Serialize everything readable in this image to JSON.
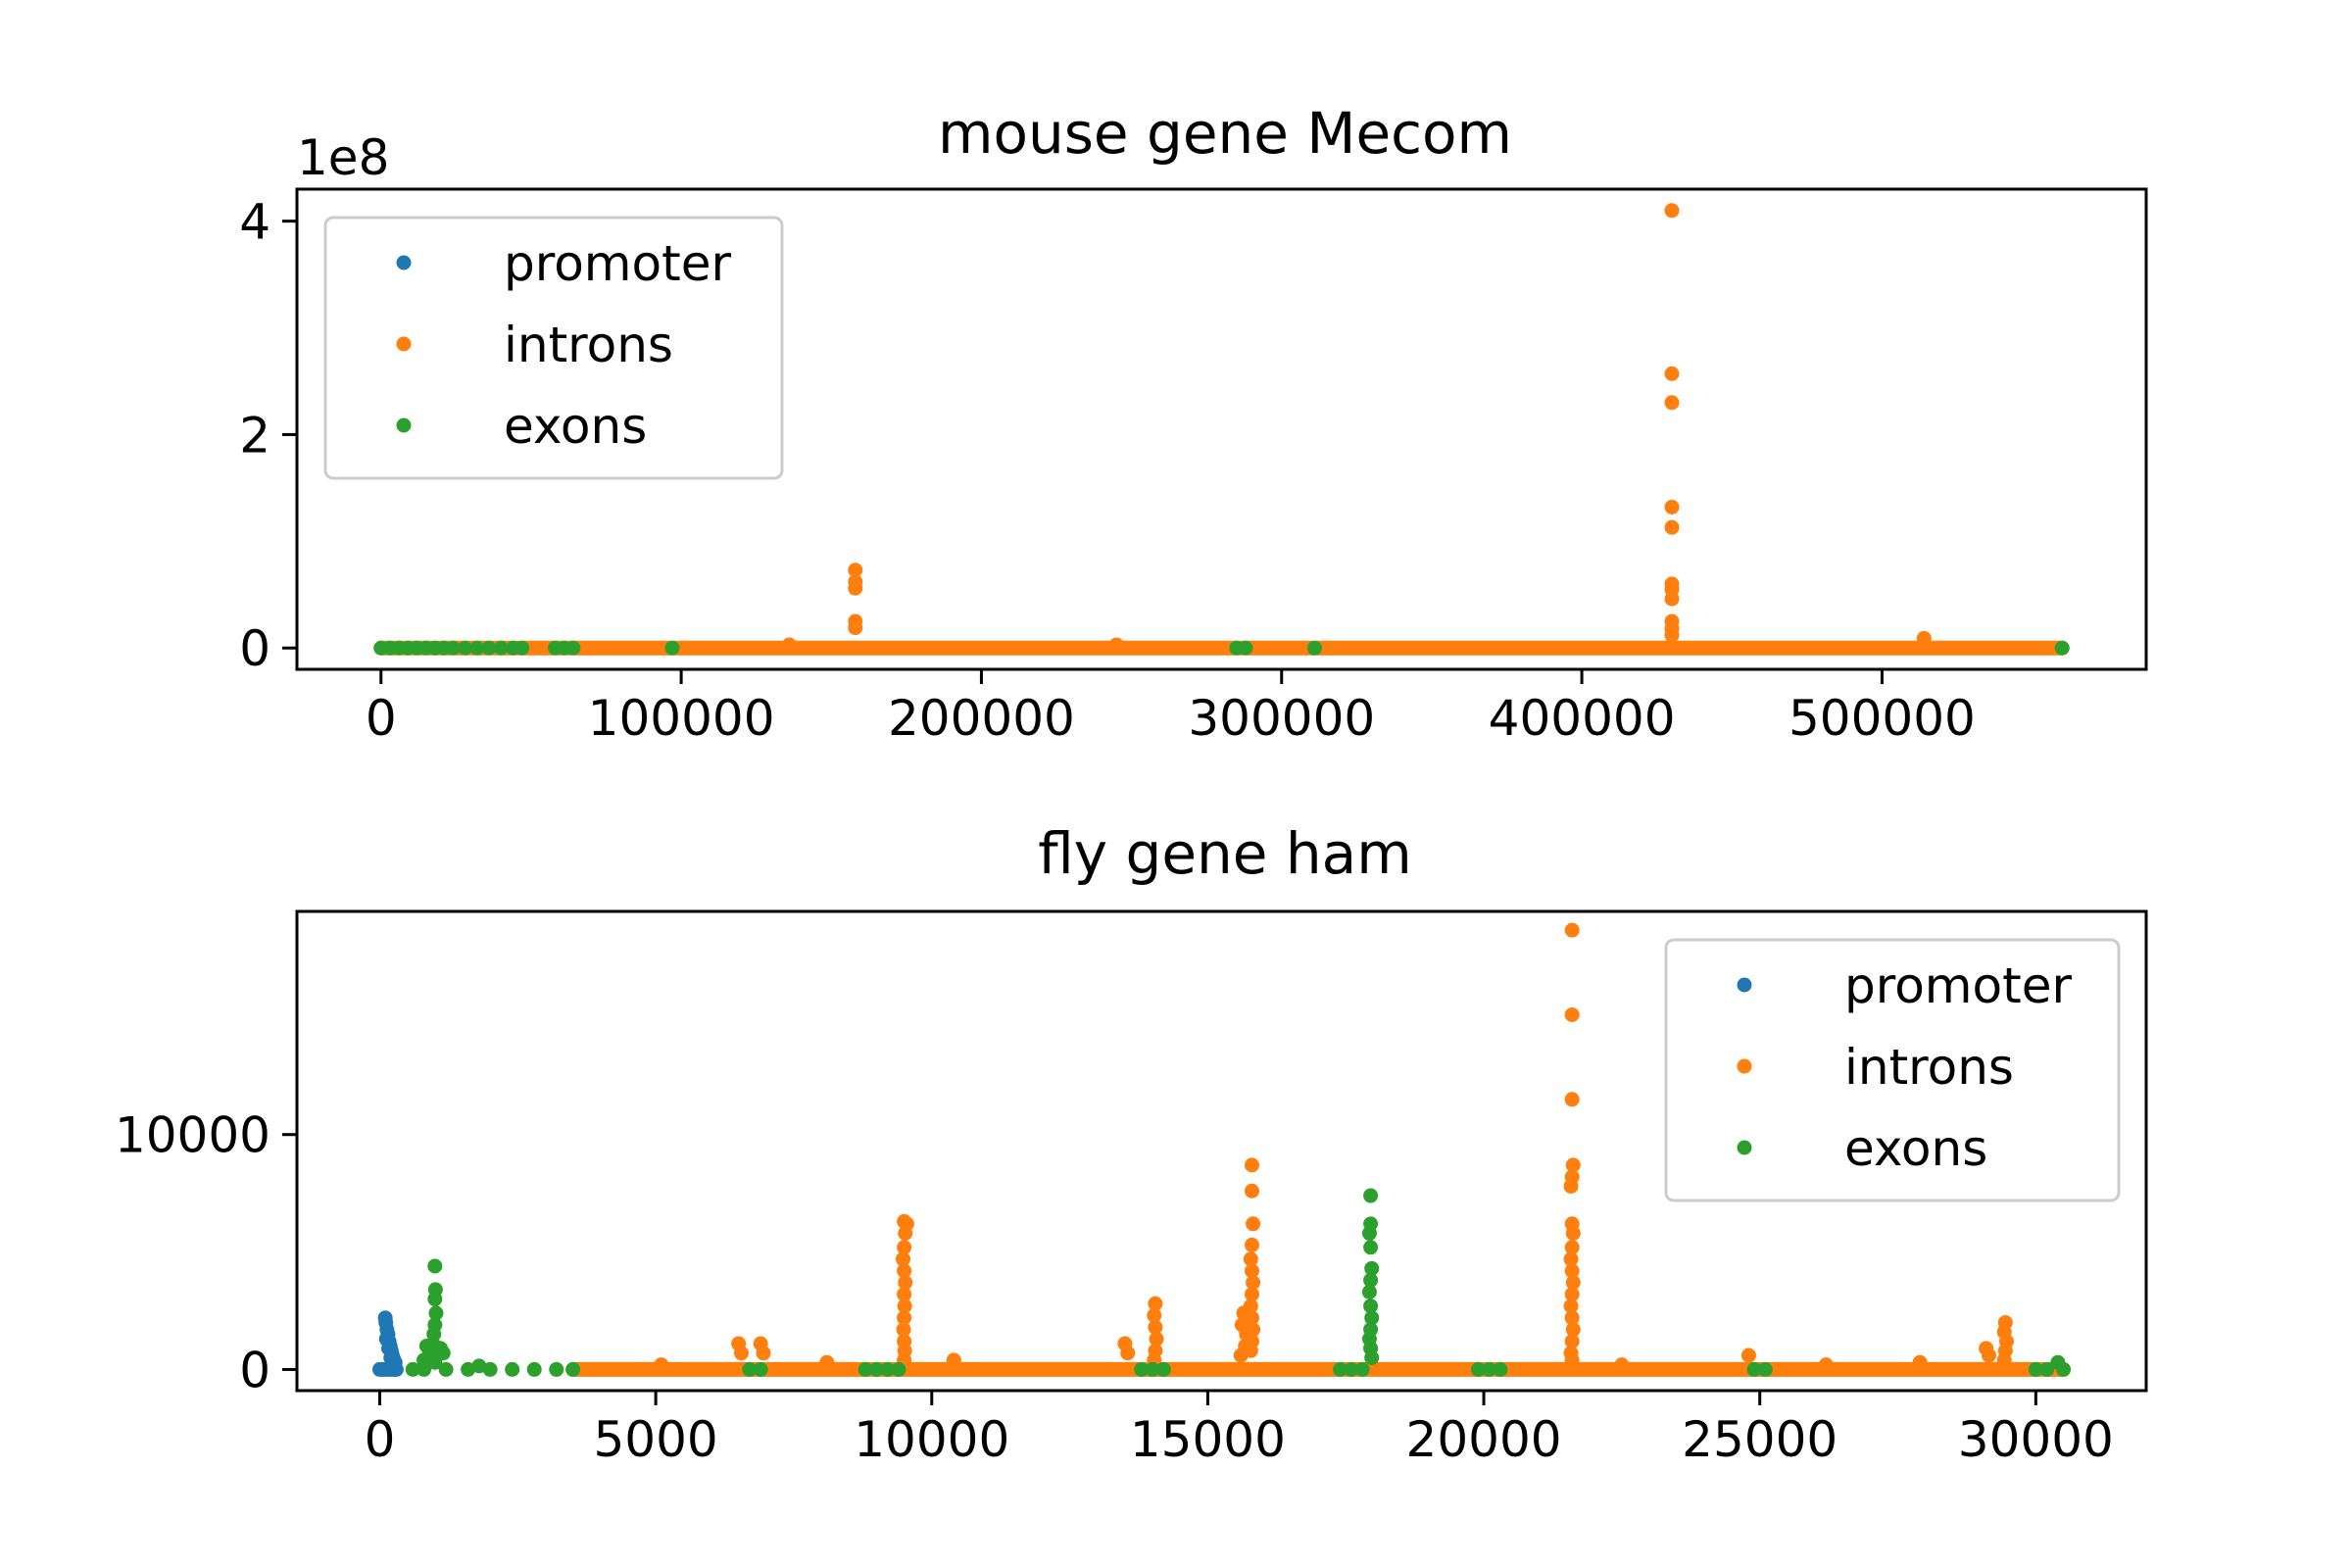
{
  "figure": {
    "legend_labels": [
      "promoter",
      "introns",
      "exons"
    ],
    "colors": {
      "promoter": "#1f77b4",
      "introns": "#ff7f0e",
      "exons": "#2ca02c"
    }
  },
  "chart_data": [
    {
      "type": "scatter",
      "title": "mouse gene Mecom",
      "xlabel": "",
      "ylabel": "",
      "y_offset_label": "1e8",
      "xlim": [
        -28000,
        588000
      ],
      "ylim": [
        -0.2,
        4.3
      ],
      "xticks": [
        0,
        100000,
        200000,
        300000,
        400000,
        500000
      ],
      "xtick_labels": [
        "0",
        "100000",
        "200000",
        "300000",
        "400000",
        "500000"
      ],
      "yticks": [
        0,
        2,
        4
      ],
      "ytick_labels": [
        "0",
        "2",
        "4"
      ],
      "grid": false,
      "legend": "upper left",
      "series": [
        {
          "name": "promoter",
          "color": "#1f77b4",
          "points": []
        },
        {
          "name": "introns",
          "color": "#ff7f0e",
          "baseline": [
            0,
            560000
          ],
          "points": [
            [
              158000,
              0.73
            ],
            [
              158000,
              0.62
            ],
            [
              158000,
              0.56
            ],
            [
              158000,
              0.25
            ],
            [
              158000,
              0.19
            ],
            [
              430000,
              4.1
            ],
            [
              430000,
              2.57
            ],
            [
              430000,
              2.3
            ],
            [
              430000,
              1.32
            ],
            [
              430000,
              1.13
            ],
            [
              430000,
              0.6
            ],
            [
              430000,
              0.55
            ],
            [
              430000,
              0.46
            ],
            [
              430000,
              0.25
            ],
            [
              430000,
              0.18
            ],
            [
              430000,
              0.12
            ],
            [
              514000,
              0.09
            ],
            [
              245000,
              0.03
            ],
            [
              136000,
              0.03
            ]
          ]
        },
        {
          "name": "exons",
          "color": "#2ca02c",
          "points": [
            [
              0,
              0
            ],
            [
              3000,
              0
            ],
            [
              6000,
              0
            ],
            [
              9000,
              0
            ],
            [
              12000,
              0
            ],
            [
              15000,
              0
            ],
            [
              18000,
              0
            ],
            [
              21000,
              0
            ],
            [
              24000,
              0
            ],
            [
              28000,
              0
            ],
            [
              32000,
              0
            ],
            [
              36000,
              0
            ],
            [
              40000,
              0
            ],
            [
              44000,
              0
            ],
            [
              47000,
              0
            ],
            [
              58000,
              0
            ],
            [
              61000,
              0
            ],
            [
              64000,
              0
            ],
            [
              97000,
              0
            ],
            [
              285000,
              0
            ],
            [
              288000,
              0
            ],
            [
              311000,
              0
            ],
            [
              560000,
              0
            ]
          ]
        }
      ]
    },
    {
      "type": "scatter",
      "title": "fly gene ham",
      "xlabel": "",
      "ylabel": "",
      "xlim": [
        -1500,
        32000
      ],
      "ylim": [
        -900,
        19500
      ],
      "xticks": [
        0,
        5000,
        10000,
        15000,
        20000,
        25000,
        30000
      ],
      "xtick_labels": [
        "0",
        "5000",
        "10000",
        "15000",
        "20000",
        "25000",
        "30000"
      ],
      "yticks": [
        0,
        10000
      ],
      "ytick_labels": [
        "0",
        "10000"
      ],
      "grid": false,
      "legend": "upper right",
      "series": [
        {
          "name": "promoter",
          "color": "#1f77b4",
          "baseline": [
            0,
            300
          ],
          "points": [
            [
              100,
              2200
            ],
            [
              110,
              2000
            ],
            [
              130,
              1700
            ],
            [
              150,
              1500
            ],
            [
              170,
              1200
            ],
            [
              190,
              1000
            ],
            [
              210,
              800
            ],
            [
              230,
              600
            ],
            [
              250,
              450
            ],
            [
              280,
              300
            ],
            [
              120,
              1300
            ],
            [
              160,
              900
            ],
            [
              200,
              500
            ]
          ]
        },
        {
          "name": "introns",
          "color": "#ff7f0e",
          "baseline": [
            3500,
            30500
          ],
          "points": [
            [
              9500,
              6300
            ],
            [
              9550,
              6200
            ],
            [
              9520,
              5800
            ],
            [
              9500,
              5200
            ],
            [
              9480,
              4700
            ],
            [
              9500,
              4200
            ],
            [
              9520,
              3700
            ],
            [
              9500,
              3200
            ],
            [
              9510,
              2700
            ],
            [
              9500,
              2200
            ],
            [
              9490,
              1700
            ],
            [
              9500,
              1200
            ],
            [
              9510,
              800
            ],
            [
              9500,
              400
            ],
            [
              10400,
              400
            ],
            [
              6500,
              1100
            ],
            [
              6550,
              700
            ],
            [
              6900,
              1100
            ],
            [
              6950,
              700
            ],
            [
              13500,
              1100
            ],
            [
              13550,
              700
            ],
            [
              14050,
              2800
            ],
            [
              14030,
              2300
            ],
            [
              14050,
              1800
            ],
            [
              14070,
              1300
            ],
            [
              14050,
              800
            ],
            [
              14030,
              400
            ],
            [
              15800,
              8700
            ],
            [
              15800,
              7600
            ],
            [
              15820,
              6200
            ],
            [
              15800,
              5300
            ],
            [
              15780,
              4700
            ],
            [
              15800,
              4200
            ],
            [
              15820,
              3700
            ],
            [
              15800,
              3200
            ],
            [
              15780,
              2700
            ],
            [
              15800,
              2200
            ],
            [
              15820,
              1700
            ],
            [
              15800,
              1200
            ],
            [
              15780,
              800
            ],
            [
              15650,
              2400
            ],
            [
              15620,
              1900
            ],
            [
              15700,
              1500
            ],
            [
              15680,
              1000
            ],
            [
              15600,
              600
            ],
            [
              21600,
              18700
            ],
            [
              21600,
              15100
            ],
            [
              21600,
              11500
            ],
            [
              21620,
              8700
            ],
            [
              21600,
              8200
            ],
            [
              21580,
              7800
            ],
            [
              21600,
              6200
            ],
            [
              21620,
              5800
            ],
            [
              21600,
              5200
            ],
            [
              21580,
              4700
            ],
            [
              21600,
              4200
            ],
            [
              21620,
              3700
            ],
            [
              21600,
              3200
            ],
            [
              21580,
              2700
            ],
            [
              21600,
              2200
            ],
            [
              21620,
              1700
            ],
            [
              21600,
              1200
            ],
            [
              21580,
              700
            ],
            [
              21600,
              400
            ],
            [
              24800,
              600
            ],
            [
              27900,
              300
            ],
            [
              29100,
              900
            ],
            [
              29150,
              600
            ],
            [
              29450,
              2000
            ],
            [
              29430,
              1600
            ],
            [
              29470,
              1200
            ],
            [
              29450,
              800
            ],
            [
              29430,
              400
            ],
            [
              8100,
              300
            ],
            [
              5100,
              200
            ],
            [
              22500,
              200
            ],
            [
              26200,
              200
            ]
          ]
        },
        {
          "name": "exons",
          "color": "#2ca02c",
          "points": [
            [
              1000,
              4400
            ],
            [
              1010,
              3400
            ],
            [
              1000,
              3000
            ],
            [
              1020,
              2400
            ],
            [
              1000,
              1900
            ],
            [
              980,
              1500
            ],
            [
              1000,
              1000
            ],
            [
              1020,
              600
            ],
            [
              1000,
              300
            ],
            [
              850,
              1000
            ],
            [
              900,
              800
            ],
            [
              950,
              600
            ],
            [
              1100,
              900
            ],
            [
              1150,
              700
            ],
            [
              800,
              400
            ],
            [
              600,
              0
            ],
            [
              800,
              0
            ],
            [
              1200,
              0
            ],
            [
              1600,
              0
            ],
            [
              2000,
              0
            ],
            [
              2400,
              0
            ],
            [
              2800,
              0
            ],
            [
              3200,
              0
            ],
            [
              3500,
              0
            ],
            [
              1800,
              150
            ],
            [
              6700,
              0
            ],
            [
              6900,
              0
            ],
            [
              8800,
              0
            ],
            [
              9000,
              0
            ],
            [
              9200,
              0
            ],
            [
              9400,
              0
            ],
            [
              13800,
              0
            ],
            [
              14000,
              0
            ],
            [
              14200,
              0
            ],
            [
              17400,
              0
            ],
            [
              17600,
              0
            ],
            [
              17800,
              0
            ],
            [
              17950,
              7400
            ],
            [
              17950,
              6200
            ],
            [
              17930,
              5800
            ],
            [
              17950,
              5200
            ],
            [
              17970,
              4300
            ],
            [
              17950,
              3800
            ],
            [
              17930,
              3300
            ],
            [
              17950,
              2700
            ],
            [
              17970,
              2200
            ],
            [
              17950,
              1700
            ],
            [
              17930,
              1300
            ],
            [
              17950,
              900
            ],
            [
              17970,
              500
            ],
            [
              19900,
              0
            ],
            [
              20100,
              0
            ],
            [
              20300,
              0
            ],
            [
              24900,
              0
            ],
            [
              25100,
              0
            ],
            [
              30000,
              0
            ],
            [
              30200,
              0
            ],
            [
              30400,
              300
            ],
            [
              30500,
              0
            ]
          ]
        }
      ]
    }
  ]
}
